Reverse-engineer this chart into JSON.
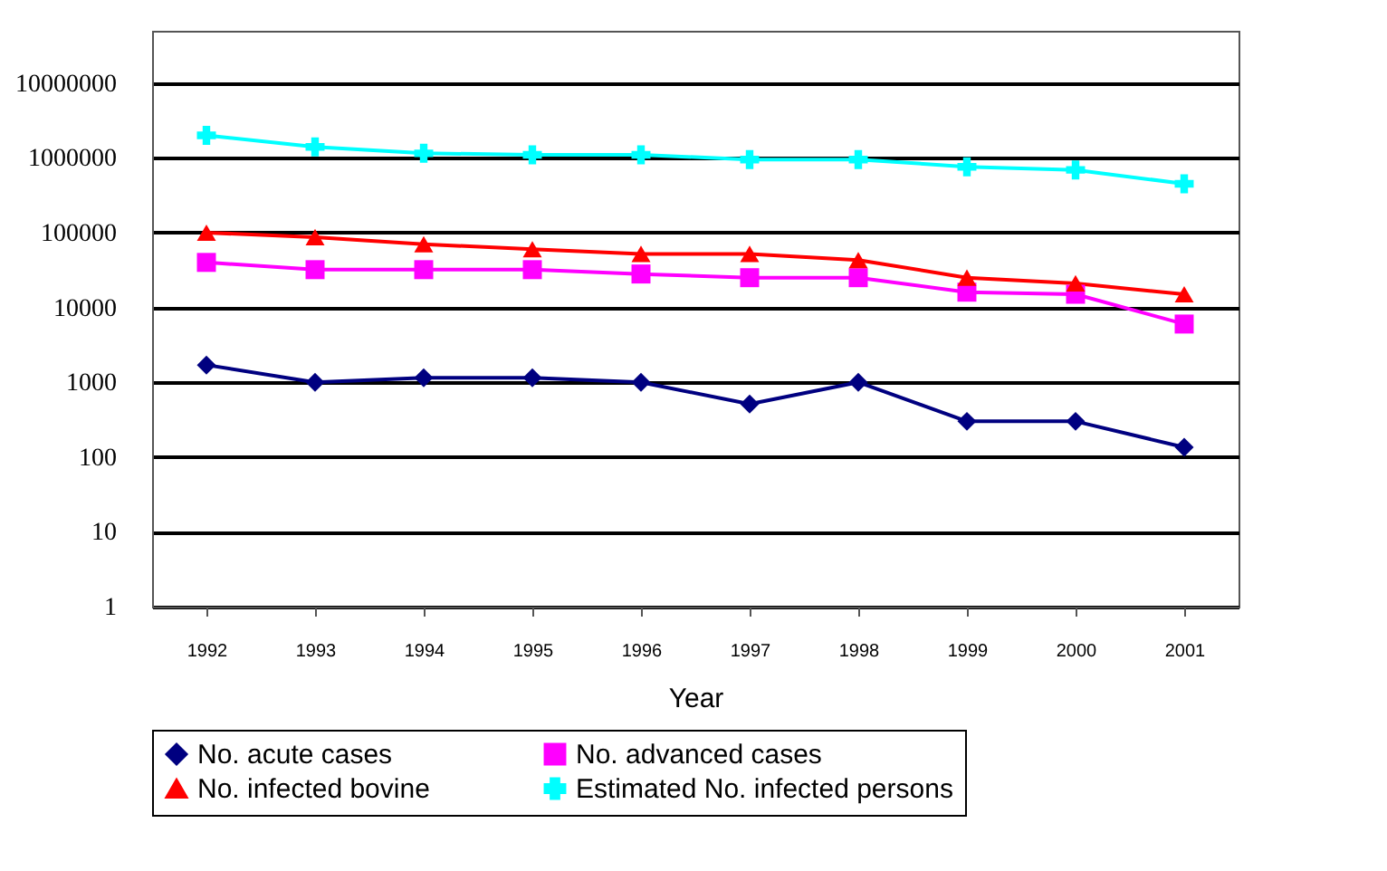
{
  "chart_data": {
    "type": "line",
    "xlabel": "Year",
    "categories": [
      "1992",
      "1993",
      "1994",
      "1995",
      "1996",
      "1997",
      "1998",
      "1999",
      "2000",
      "2001"
    ],
    "series": [
      {
        "name": "No. acute cases",
        "color": "#000080",
        "marker": "diamond",
        "values": [
          1700,
          1000,
          1150,
          1150,
          1000,
          510,
          1000,
          300,
          300,
          135
        ]
      },
      {
        "name": "No. advanced cases",
        "color": "#ff00ff",
        "marker": "square",
        "values": [
          40000,
          32000,
          32000,
          32000,
          28000,
          25000,
          25000,
          16000,
          15000,
          6000
        ]
      },
      {
        "name": "No. infected bovine",
        "color": "#ff0000",
        "marker": "triangle",
        "values": [
          100000,
          87000,
          70000,
          60000,
          52000,
          52000,
          43000,
          25000,
          21000,
          15000
        ]
      },
      {
        "name": "Estimated No. infected persons",
        "color": "#00ffff",
        "marker": "cross",
        "values": [
          2000000,
          1400000,
          1150000,
          1100000,
          1100000,
          950000,
          950000,
          760000,
          690000,
          450000
        ]
      }
    ],
    "log": "y",
    "ylim": [
      1,
      50000000
    ],
    "yticks": [
      1,
      10,
      100,
      1000,
      10000,
      100000,
      1000000,
      10000000
    ],
    "grid": "y",
    "legend": "bottom"
  }
}
